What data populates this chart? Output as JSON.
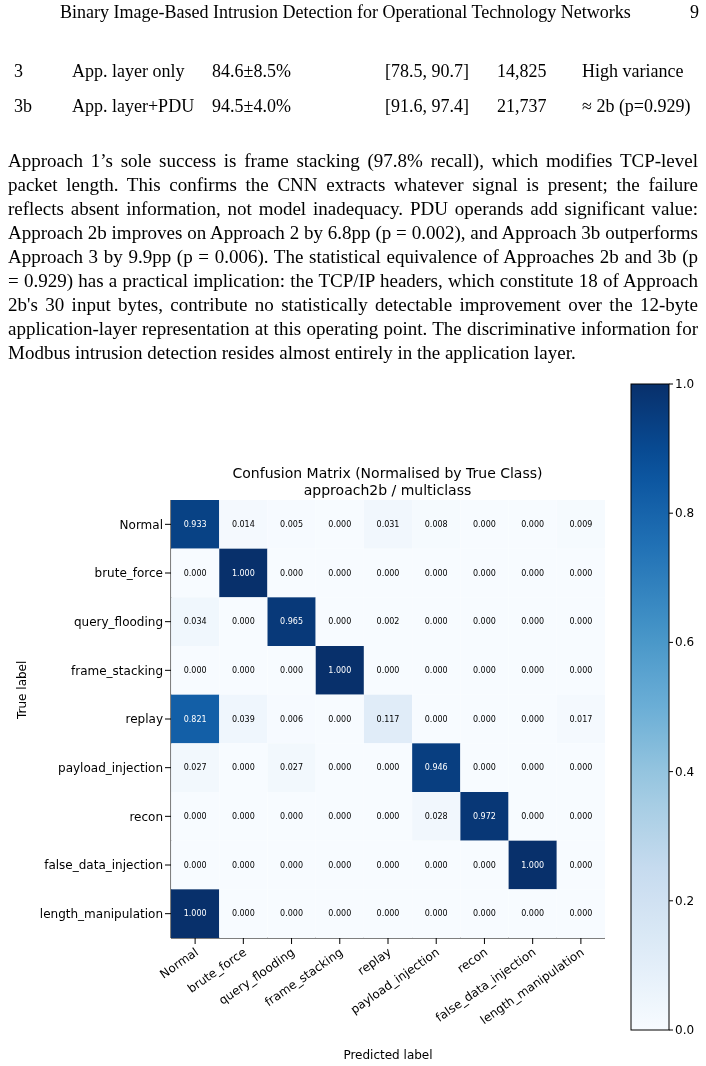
{
  "chart_data": {
    "type": "heatmap",
    "title": "Confusion Matrix (Normalised by True Class)",
    "subtitle": "approach2b / multiclass",
    "xlabel": "Predicted label",
    "ylabel": "True label",
    "categories": [
      "Normal",
      "brute_force",
      "query_flooding",
      "frame_stacking",
      "replay",
      "payload_injection",
      "recon",
      "false_data_injection",
      "length_manipulation"
    ],
    "y_categories": [
      "Normal",
      "brute_force",
      "query_flooding",
      "frame_stacking",
      "replay",
      "payload_injection",
      "recon",
      "false_data_injection",
      "length_manipulation"
    ],
    "cells": [
      [
        0.933,
        0.014,
        0.005,
        0.0,
        0.031,
        0.008,
        0.0,
        0.0,
        0.009
      ],
      [
        0.0,
        1.0,
        0.0,
        0.0,
        0.0,
        0.0,
        0.0,
        0.0,
        0.0
      ],
      [
        0.034,
        0.0,
        0.965,
        0.0,
        0.002,
        0.0,
        0.0,
        0.0,
        0.0
      ],
      [
        0.0,
        0.0,
        0.0,
        1.0,
        0.0,
        0.0,
        0.0,
        0.0,
        0.0
      ],
      [
        0.821,
        0.039,
        0.006,
        0.0,
        0.117,
        0.0,
        0.0,
        0.0,
        0.017
      ],
      [
        0.027,
        0.0,
        0.027,
        0.0,
        0.0,
        0.946,
        0.0,
        0.0,
        0.0
      ],
      [
        0.0,
        0.0,
        0.0,
        0.0,
        0.0,
        0.028,
        0.972,
        0.0,
        0.0
      ],
      [
        0.0,
        0.0,
        0.0,
        0.0,
        0.0,
        0.0,
        0.0,
        1.0,
        0.0
      ],
      [
        1.0,
        0.0,
        0.0,
        0.0,
        0.0,
        0.0,
        0.0,
        0.0,
        0.0
      ]
    ],
    "cell_labels": [
      [
        "0.933",
        "0.014",
        "0.005",
        "0.000",
        "0.031",
        "0.008",
        "0.000",
        "0.000",
        "0.009"
      ],
      [
        "0.000",
        "1.000",
        "0.000",
        "0.000",
        "0.000",
        "0.000",
        "0.000",
        "0.000",
        "0.000"
      ],
      [
        "0.034",
        "0.000",
        "0.965",
        "0.000",
        "0.002",
        "0.000",
        "0.000",
        "0.000",
        "0.000"
      ],
      [
        "0.000",
        "0.000",
        "0.000",
        "1.000",
        "0.000",
        "0.000",
        "0.000",
        "0.000",
        "0.000"
      ],
      [
        "0.821",
        "0.039",
        "0.006",
        "0.000",
        "0.117",
        "0.000",
        "0.000",
        "0.000",
        "0.017"
      ],
      [
        "0.027",
        "0.000",
        "0.027",
        "0.000",
        "0.000",
        "0.946",
        "0.000",
        "0.000",
        "0.000"
      ],
      [
        "0.000",
        "0.000",
        "0.000",
        "0.000",
        "0.000",
        "0.028",
        "0.972",
        "0.000",
        "0.000"
      ],
      [
        "0.000",
        "0.000",
        "0.000",
        "0.000",
        "0.000",
        "0.000",
        "0.000",
        "1.000",
        "0.000"
      ],
      [
        "1.000",
        "0.000",
        "0.000",
        "0.000",
        "0.000",
        "0.000",
        "0.000",
        "0.000",
        "0.000"
      ]
    ],
    "clim": [
      0,
      1
    ],
    "cticks": [
      {
        "value": 0,
        "label": "0.0"
      },
      0.2,
      0.4,
      0.6,
      0.8,
      {
        "value": 1,
        "label": "1.0"
      }
    ],
    "annotations": [
      "Binary Image-Based Intrusion Detection for Operational Technology Networks",
      "9",
      "3",
      "App. layer only",
      "84.6±8.5%",
      "[78.5, 90.7]",
      "14,825",
      "High variance",
      "3b",
      "App. layer+PDU",
      "94.5±4.0%",
      "[91.6, 97.4]",
      "21,737",
      "≈ 2b (p=0.929)",
      "Approach 1’s sole success is frame stacking (97.8% recall), which modifies TCP-level packet length. This confirms the CNN extracts whatever signal is present; the failure reflects absent information, not model inadequacy. PDU operands add significant value: Approach 2b improves on Approach 2 by 6.8pp (p = 0.002), and Approach 3b outperforms Approach 3 by 9.9pp (p = 0.006). The statistical equivalence of Approaches 2b and 3b (p = 0.929) has a practical implication: the TCP/IP headers, which constitute 18 of Approach 2b's 30 input bytes, contribute no statistically detectable improvement over the 12-byte application-layer representation at this operating point. The discriminative information for Modbus intrusion detection resides almost entirely in the application layer."
    ]
  }
}
